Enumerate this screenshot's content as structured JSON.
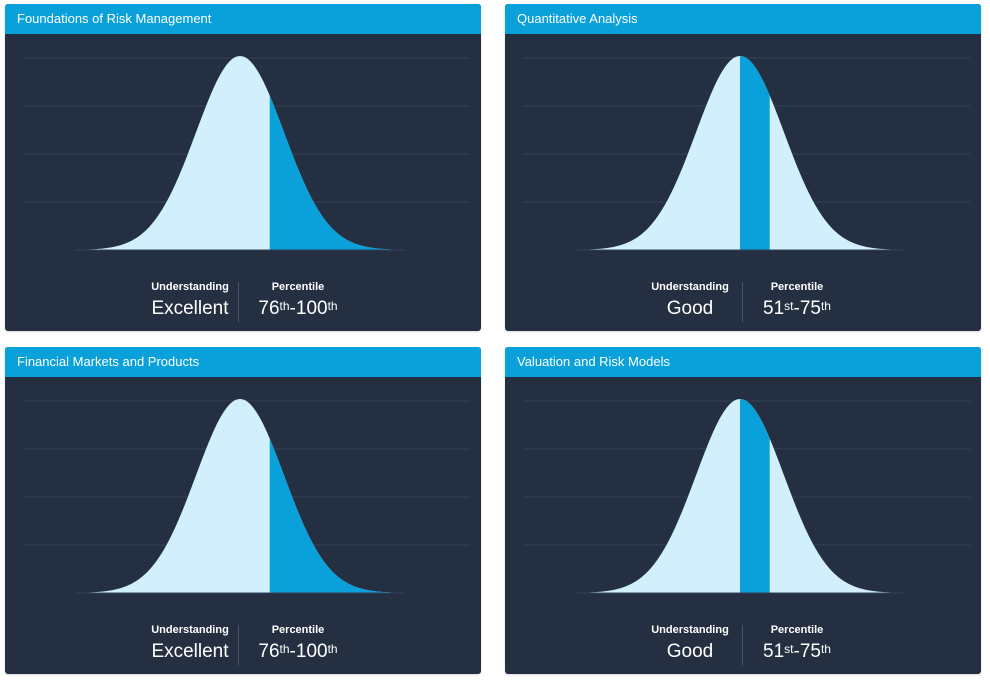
{
  "colors": {
    "header": "#0aa1db",
    "panel": "#243042",
    "curve_fill": "#d1f0fc",
    "highlight_fill": "#0aa1db",
    "grid": "#33405a"
  },
  "cards": [
    {
      "title": "Foundations of Risk Management",
      "understanding_label": "Understanding",
      "understanding_value": "Excellent",
      "percentile_label": "Percentile",
      "percentile_from": "76",
      "percentile_from_suffix": "th",
      "percentile_sep": "-",
      "percentile_to": "100",
      "percentile_to_suffix": "th",
      "band": [
        76,
        100
      ]
    },
    {
      "title": "Quantitative Analysis",
      "understanding_label": "Understanding",
      "understanding_value": "Good",
      "percentile_label": "Percentile",
      "percentile_from": "51",
      "percentile_from_suffix": "st",
      "percentile_sep": "-",
      "percentile_to": "75",
      "percentile_to_suffix": "th",
      "band": [
        51,
        75
      ]
    },
    {
      "title": "Financial Markets and Products",
      "understanding_label": "Understanding",
      "understanding_value": "Excellent",
      "percentile_label": "Percentile",
      "percentile_from": "76",
      "percentile_from_suffix": "th",
      "percentile_sep": "-",
      "percentile_to": "100",
      "percentile_to_suffix": "th",
      "band": [
        76,
        100
      ]
    },
    {
      "title": "Valuation and Risk Models",
      "understanding_label": "Understanding",
      "understanding_value": "Good",
      "percentile_label": "Percentile",
      "percentile_from": "51",
      "percentile_from_suffix": "st",
      "percentile_sep": "-",
      "percentile_to": "75",
      "percentile_to_suffix": "th",
      "band": [
        51,
        75
      ]
    }
  ]
}
